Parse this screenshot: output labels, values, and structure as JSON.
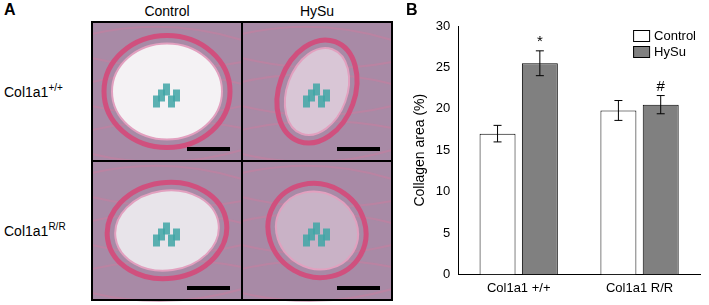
{
  "panel_a": {
    "label": "A",
    "columns": [
      "Control",
      "HySu"
    ],
    "rows": [
      {
        "text": "Col1a1",
        "sup": "+/+"
      },
      {
        "text": "Col1a1",
        "sup": "R/R"
      }
    ]
  },
  "chart_data": {
    "label": "B",
    "type": "bar",
    "y_label": "Collagen area (%)",
    "categories": [
      "Col1a1 +/+",
      "Col1a1 R/R"
    ],
    "series": [
      {
        "name": "Control",
        "color": "#ffffff",
        "values": [
          17,
          19.8
        ],
        "errors": [
          1,
          1.2
        ]
      },
      {
        "name": "HySu",
        "color": "#808080",
        "values": [
          25.5,
          20.5
        ],
        "errors": [
          1.5,
          1.1
        ],
        "annotations": [
          "*",
          "#"
        ]
      }
    ],
    "ylim": [
      0,
      30
    ],
    "yticks": [
      0,
      5,
      10,
      15,
      20,
      25,
      30
    ],
    "grid": false,
    "legend": "top-right"
  }
}
